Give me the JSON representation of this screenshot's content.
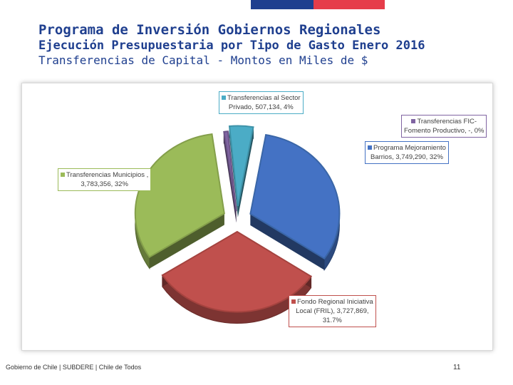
{
  "header": {
    "title": "Programa de Inversión Gobiernos Regionales",
    "subtitle": "Ejecución Presupuestaria por Tipo de Gasto Enero 2016",
    "subtitle2": "Transferencias de Capital - Montos en Miles de $",
    "bar_colors": [
      "#1f3f8f",
      "#e63d4a"
    ]
  },
  "chart_data": {
    "type": "pie",
    "style": "3d-exploded",
    "title": "",
    "slices": [
      {
        "name": "Programa Mejoramiento Barrios",
        "label": "Programa Mejoramiento\nBarrios, 3,749,290, 32%",
        "value": 3749290,
        "color": "#4472c4",
        "border": "#3a66a7"
      },
      {
        "name": "Fondo Regional Iniciativa Local (FRIL)",
        "label": "Fondo Regional Iniciativa\nLocal (FRIL), 3,727,869,\n31.7%",
        "value": 3727869,
        "color": "#c0504d",
        "border": "#a5433f"
      },
      {
        "name": "Transferencias Municipios",
        "label": "Transferencias Municipios ,\n3,783,356, 32%",
        "value": 3783356,
        "color": "#9bbb59",
        "border": "#849f4b"
      },
      {
        "name": "Transferencias FIC-Fomento Productivo",
        "label": "Transferencias FIC-\nFomento Productivo, -, 0%",
        "value": 0,
        "color": "#8064a2",
        "border": "#6b5487"
      },
      {
        "name": "Transferencias al Sector Privado",
        "label": "Transferencias al Sector\nPrivado, 507,134, 4%",
        "value": 507134,
        "color": "#4bacc6",
        "border": "#3f93a9"
      }
    ]
  },
  "footer": {
    "text": "Gobierno de Chile | SUBDERE | Chile de Todos",
    "page_number": "11"
  }
}
